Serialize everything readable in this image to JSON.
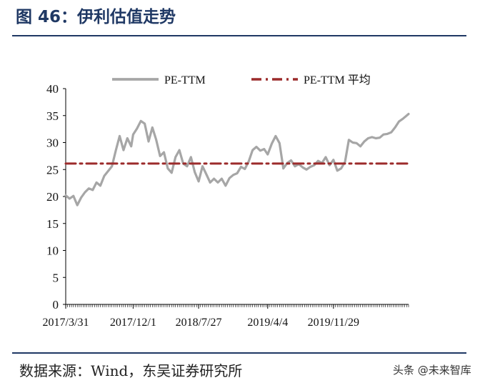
{
  "figure": {
    "title": "图 46：伊利估值走势",
    "source": "数据来源：Wind，东吴证券研究所",
    "watermark": "头条 @未来智库"
  },
  "colors": {
    "title": "#1f3864",
    "series_pe_ttm": "#a6a6a6",
    "series_pe_avg": "#9c2b2b"
  },
  "chart_data": {
    "type": "line",
    "title": "",
    "xlabel": "",
    "ylabel": "",
    "ylim": [
      0,
      40
    ],
    "yticks": [
      0,
      5,
      10,
      15,
      20,
      25,
      30,
      35,
      40
    ],
    "xlim": [
      "2017/3/31",
      "2020/8/28"
    ],
    "xtick_labels": [
      "2017/3/31",
      "2017/12/1",
      "2018/7/27",
      "2019/4/4",
      "2019/11/29"
    ],
    "grid": false,
    "legend": "top",
    "series": [
      {
        "name": "PE-TTM",
        "style": "solid",
        "points": [
          [
            "2017/3/31",
            20.2
          ],
          [
            "2017/4/14",
            19.6
          ],
          [
            "2017/4/28",
            20.1
          ],
          [
            "2017/5/12",
            18.4
          ],
          [
            "2017/5/26",
            19.8
          ],
          [
            "2017/6/9",
            20.8
          ],
          [
            "2017/6/23",
            21.5
          ],
          [
            "2017/7/7",
            21.2
          ],
          [
            "2017/7/21",
            22.6
          ],
          [
            "2017/8/4",
            22.0
          ],
          [
            "2017/8/18",
            23.8
          ],
          [
            "2017/9/1",
            24.7
          ],
          [
            "2017/9/15",
            25.6
          ],
          [
            "2017/9/29",
            28.5
          ],
          [
            "2017/10/13",
            31.2
          ],
          [
            "2017/10/27",
            28.6
          ],
          [
            "2017/11/10",
            30.8
          ],
          [
            "2017/11/24",
            29.3
          ],
          [
            "2017/12/1",
            31.5
          ],
          [
            "2017/12/15",
            32.6
          ],
          [
            "2017/12/29",
            34.0
          ],
          [
            "2018/1/12",
            33.5
          ],
          [
            "2018/1/26",
            30.2
          ],
          [
            "2018/2/9",
            32.8
          ],
          [
            "2018/2/23",
            30.5
          ],
          [
            "2018/3/9",
            27.5
          ],
          [
            "2018/3/23",
            28.2
          ],
          [
            "2018/4/6",
            25.2
          ],
          [
            "2018/4/20",
            24.4
          ],
          [
            "2018/5/4",
            27.3
          ],
          [
            "2018/5/18",
            28.6
          ],
          [
            "2018/6/1",
            26.1
          ],
          [
            "2018/6/15",
            25.6
          ],
          [
            "2018/6/29",
            27.3
          ],
          [
            "2018/7/13",
            24.5
          ],
          [
            "2018/7/27",
            22.8
          ],
          [
            "2018/8/10",
            25.6
          ],
          [
            "2018/8/24",
            24.1
          ],
          [
            "2018/9/7",
            22.6
          ],
          [
            "2018/9/21",
            23.3
          ],
          [
            "2018/10/5",
            22.6
          ],
          [
            "2018/10/19",
            23.3
          ],
          [
            "2018/11/2",
            22.0
          ],
          [
            "2018/11/16",
            23.4
          ],
          [
            "2018/11/30",
            24.0
          ],
          [
            "2018/12/14",
            24.3
          ],
          [
            "2018/12/28",
            25.5
          ],
          [
            "2019/1/11",
            25.1
          ],
          [
            "2019/1/25",
            26.5
          ],
          [
            "2019/2/8",
            28.6
          ],
          [
            "2019/2/22",
            29.2
          ],
          [
            "2019/3/8",
            28.5
          ],
          [
            "2019/3/22",
            28.8
          ],
          [
            "2019/4/4",
            27.8
          ],
          [
            "2019/4/19",
            29.8
          ],
          [
            "2019/5/3",
            31.2
          ],
          [
            "2019/5/17",
            29.9
          ],
          [
            "2019/5/31",
            25.2
          ],
          [
            "2019/6/14",
            26.2
          ],
          [
            "2019/6/28",
            26.7
          ],
          [
            "2019/7/12",
            25.6
          ],
          [
            "2019/7/26",
            26.0
          ],
          [
            "2019/8/9",
            25.4
          ],
          [
            "2019/8/23",
            25.0
          ],
          [
            "2019/9/6",
            25.5
          ],
          [
            "2019/9/20",
            25.8
          ],
          [
            "2019/10/4",
            26.6
          ],
          [
            "2019/10/18",
            26.2
          ],
          [
            "2019/11/1",
            27.3
          ],
          [
            "2019/11/15",
            25.8
          ],
          [
            "2019/11/29",
            26.8
          ],
          [
            "2019/12/13",
            24.8
          ],
          [
            "2019/12/27",
            25.2
          ],
          [
            "2020/1/10",
            26.4
          ],
          [
            "2020/1/24",
            30.5
          ],
          [
            "2020/2/7",
            30.0
          ],
          [
            "2020/2/21",
            29.9
          ],
          [
            "2020/3/6",
            29.3
          ],
          [
            "2020/3/20",
            30.2
          ],
          [
            "2020/4/3",
            30.8
          ],
          [
            "2020/4/17",
            31.0
          ],
          [
            "2020/5/1",
            30.8
          ],
          [
            "2020/5/15",
            30.9
          ],
          [
            "2020/5/29",
            31.5
          ],
          [
            "2020/6/12",
            31.6
          ],
          [
            "2020/6/26",
            31.9
          ],
          [
            "2020/7/10",
            32.8
          ],
          [
            "2020/7/24",
            33.9
          ],
          [
            "2020/8/7",
            34.4
          ],
          [
            "2020/8/28",
            35.3
          ]
        ]
      },
      {
        "name": "PE-TTM 平均",
        "style": "dash-dot",
        "points": [
          [
            "2017/3/31",
            26.1
          ],
          [
            "2020/8/28",
            26.1
          ]
        ]
      }
    ]
  }
}
